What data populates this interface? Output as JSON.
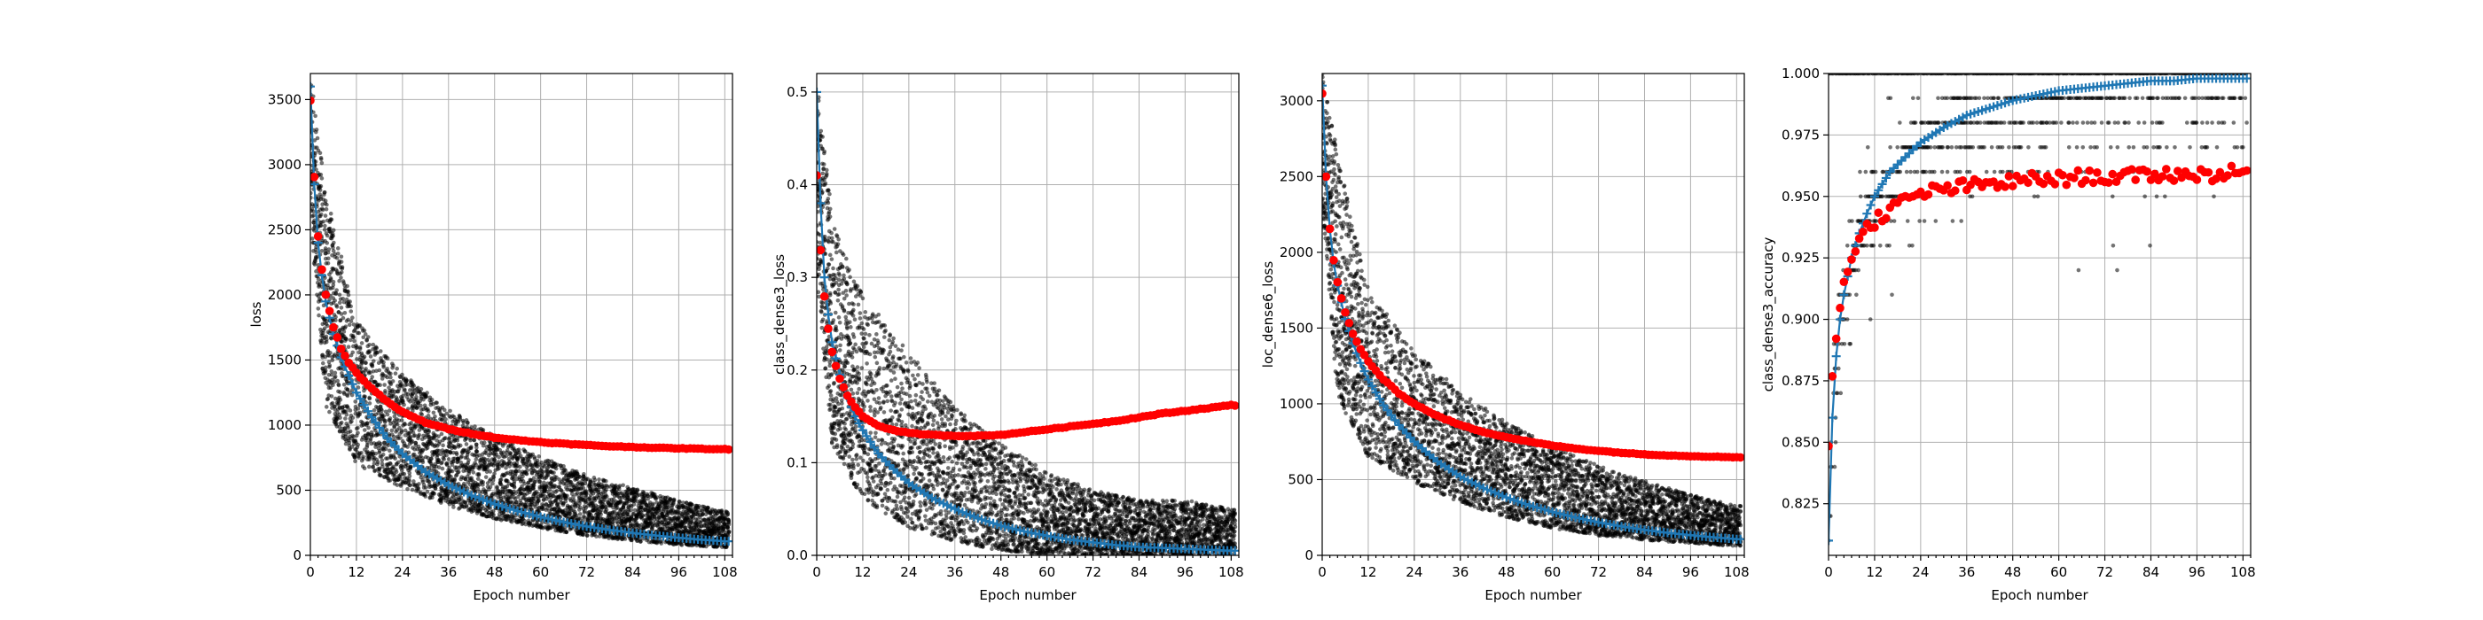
{
  "figure": {
    "colors": {
      "train_points": "#000000",
      "train_mean": "#1f77b4",
      "validation": "#ff0000",
      "grid": "#b0b0b0"
    }
  },
  "chart_data": [
    {
      "type": "scatter",
      "xlabel": "Epoch number",
      "ylabel": "loss",
      "xlim": [
        0,
        110
      ],
      "ylim": [
        0,
        3700
      ],
      "x_ticks": [
        0,
        12,
        24,
        36,
        48,
        60,
        72,
        84,
        96,
        108
      ],
      "y_ticks": [
        0,
        500,
        1000,
        1500,
        2000,
        2500,
        3000,
        3500
      ],
      "y_tick_labels": [
        "0",
        "500",
        "1000",
        "1500",
        "2000",
        "2500",
        "3000",
        "3500"
      ],
      "grid": true,
      "series": [
        {
          "x": [
            0,
            1,
            2,
            3,
            4,
            6,
            8,
            10,
            12,
            16,
            20,
            24,
            30,
            36,
            42,
            48,
            54,
            60,
            66,
            72,
            78,
            84,
            90,
            96,
            102,
            108
          ],
          "values": [
            3600,
            2850,
            2400,
            2150,
            1950,
            1700,
            1520,
            1380,
            1250,
            1060,
            900,
            780,
            640,
            540,
            460,
            395,
            340,
            295,
            255,
            222,
            195,
            172,
            152,
            135,
            120,
            108
          ]
        },
        {
          "x": [
            0,
            1,
            2,
            3,
            4,
            6,
            8,
            10,
            12,
            16,
            20,
            24,
            30,
            36,
            42,
            48,
            54,
            60,
            66,
            72,
            78,
            84,
            90,
            96,
            102,
            108
          ],
          "values": [
            3500,
            2900,
            2450,
            2200,
            2000,
            1750,
            1590,
            1480,
            1400,
            1280,
            1180,
            1100,
            1020,
            970,
            935,
            905,
            885,
            870,
            857,
            847,
            838,
            832,
            826,
            822,
            818,
            815
          ]
        }
      ],
      "scatter_spread": {
        "x": [
          0,
          4,
          12,
          24,
          36,
          48,
          60,
          72,
          84,
          96,
          108
        ],
        "low": [
          2600,
          1150,
          700,
          520,
          380,
          280,
          210,
          150,
          110,
          80,
          60
        ],
        "high": [
          3700,
          2800,
          1800,
          1400,
          1120,
          920,
          760,
          620,
          520,
          420,
          340
        ]
      }
    },
    {
      "type": "scatter",
      "xlabel": "Epoch number",
      "ylabel": "class_dense3_loss",
      "xlim": [
        0,
        110
      ],
      "ylim": [
        0,
        0.52
      ],
      "x_ticks": [
        0,
        12,
        24,
        36,
        48,
        60,
        72,
        84,
        96,
        108
      ],
      "y_ticks": [
        0,
        0.1,
        0.2,
        0.3,
        0.4,
        0.5
      ],
      "y_tick_labels": [
        "0.0",
        "0.1",
        "0.2",
        "0.3",
        "0.4",
        "0.5"
      ],
      "grid": true,
      "series": [
        {
          "x": [
            0,
            1,
            2,
            3,
            4,
            6,
            8,
            10,
            12,
            16,
            20,
            24,
            30,
            36,
            42,
            48,
            54,
            60,
            66,
            72,
            78,
            84,
            90,
            96,
            102,
            108
          ],
          "values": [
            0.5,
            0.38,
            0.3,
            0.26,
            0.23,
            0.195,
            0.17,
            0.15,
            0.135,
            0.11,
            0.093,
            0.078,
            0.062,
            0.05,
            0.04,
            0.032,
            0.026,
            0.021,
            0.017,
            0.014,
            0.011,
            0.009,
            0.008,
            0.007,
            0.006,
            0.005
          ]
        },
        {
          "x": [
            0,
            1,
            2,
            3,
            4,
            6,
            8,
            10,
            12,
            16,
            20,
            24,
            30,
            36,
            42,
            48,
            54,
            60,
            66,
            72,
            78,
            84,
            90,
            96,
            102,
            108
          ],
          "values": [
            0.41,
            0.33,
            0.28,
            0.245,
            0.22,
            0.19,
            0.172,
            0.16,
            0.15,
            0.14,
            0.135,
            0.132,
            0.13,
            0.129,
            0.129,
            0.13,
            0.133,
            0.136,
            0.139,
            0.142,
            0.145,
            0.149,
            0.153,
            0.156,
            0.159,
            0.162
          ]
        }
      ],
      "scatter_spread": {
        "x": [
          0,
          4,
          12,
          24,
          36,
          48,
          60,
          72,
          84,
          96,
          108
        ],
        "low": [
          0.3,
          0.12,
          0.06,
          0.03,
          0.015,
          0.005,
          0.0,
          0.0,
          0.0,
          0.0,
          0.0
        ],
        "high": [
          0.52,
          0.36,
          0.28,
          0.22,
          0.16,
          0.12,
          0.09,
          0.07,
          0.06,
          0.06,
          0.05
        ]
      }
    },
    {
      "type": "scatter",
      "xlabel": "Epoch number",
      "ylabel": "loc_dense6_loss",
      "xlim": [
        0,
        110
      ],
      "ylim": [
        0,
        3180
      ],
      "x_ticks": [
        0,
        12,
        24,
        36,
        48,
        60,
        72,
        84,
        96,
        108
      ],
      "y_ticks": [
        0,
        500,
        1000,
        1500,
        2000,
        2500,
        3000
      ],
      "y_tick_labels": [
        "0",
        "500",
        "1000",
        "1500",
        "2000",
        "2500",
        "3000"
      ],
      "grid": true,
      "series": [
        {
          "x": [
            0,
            1,
            2,
            3,
            4,
            6,
            8,
            10,
            12,
            16,
            20,
            24,
            30,
            36,
            42,
            48,
            54,
            60,
            66,
            72,
            78,
            84,
            90,
            96,
            102,
            108
          ],
          "values": [
            3100,
            2500,
            2150,
            1930,
            1780,
            1560,
            1400,
            1270,
            1160,
            990,
            860,
            750,
            620,
            520,
            445,
            382,
            330,
            287,
            250,
            218,
            191,
            168,
            149,
            133,
            119,
            107
          ]
        },
        {
          "x": [
            0,
            1,
            2,
            3,
            4,
            6,
            8,
            10,
            12,
            16,
            20,
            24,
            30,
            36,
            42,
            48,
            54,
            60,
            66,
            72,
            78,
            84,
            90,
            96,
            102,
            108
          ],
          "values": [
            3050,
            2500,
            2150,
            1950,
            1800,
            1600,
            1460,
            1360,
            1280,
            1160,
            1070,
            1000,
            920,
            860,
            815,
            780,
            750,
            725,
            705,
            690,
            677,
            667,
            660,
            655,
            651,
            648
          ]
        }
      ],
      "scatter_spread": {
        "x": [
          0,
          4,
          12,
          24,
          36,
          48,
          60,
          72,
          84,
          96,
          108
        ],
        "low": [
          2300,
          1050,
          650,
          480,
          350,
          250,
          180,
          130,
          100,
          80,
          60
        ],
        "high": [
          3180,
          2650,
          1750,
          1350,
          1080,
          880,
          720,
          590,
          490,
          400,
          330
        ]
      }
    },
    {
      "type": "scatter",
      "xlabel": "Epoch number",
      "ylabel": "class_dense3_accuracy",
      "xlim": [
        0,
        110
      ],
      "ylim": [
        0.804,
        1.0
      ],
      "x_ticks": [
        0,
        12,
        24,
        36,
        48,
        60,
        72,
        84,
        96,
        108
      ],
      "y_ticks": [
        0.825,
        0.85,
        0.875,
        0.9,
        0.925,
        0.95,
        0.975,
        1.0
      ],
      "y_tick_labels": [
        "0.825",
        "0.850",
        "0.875",
        "0.900",
        "0.925",
        "0.950",
        "0.975",
        "1.000"
      ],
      "grid": true,
      "series": [
        {
          "x": [
            0,
            1,
            2,
            3,
            4,
            6,
            8,
            10,
            12,
            16,
            20,
            24,
            30,
            36,
            42,
            48,
            54,
            60,
            66,
            72,
            78,
            84,
            90,
            96,
            102,
            108
          ],
          "values": [
            0.81,
            0.86,
            0.885,
            0.9,
            0.91,
            0.925,
            0.935,
            0.943,
            0.95,
            0.96,
            0.966,
            0.972,
            0.978,
            0.983,
            0.986,
            0.989,
            0.991,
            0.993,
            0.994,
            0.995,
            0.996,
            0.997,
            0.997,
            0.998,
            0.998,
            0.998
          ]
        },
        {
          "x": [
            0,
            1,
            2,
            3,
            4,
            6,
            8,
            10,
            12,
            16,
            20,
            24,
            30,
            36,
            42,
            48,
            54,
            60,
            66,
            72,
            78,
            84,
            90,
            96,
            102,
            108
          ],
          "values": [
            0.848,
            0.875,
            0.893,
            0.905,
            0.915,
            0.926,
            0.932,
            0.937,
            0.94,
            0.945,
            0.948,
            0.951,
            0.953,
            0.954,
            0.955,
            0.956,
            0.957,
            0.957,
            0.958,
            0.958,
            0.958,
            0.959,
            0.959,
            0.959,
            0.959,
            0.96
          ]
        }
      ],
      "scatter_levels": [
        0.81,
        0.82,
        0.83,
        0.84,
        0.85,
        0.86,
        0.87,
        0.88,
        0.89,
        0.9,
        0.91,
        0.92,
        0.93,
        0.94,
        0.95,
        0.96,
        0.97,
        0.98,
        0.99,
        1.0
      ]
    }
  ]
}
